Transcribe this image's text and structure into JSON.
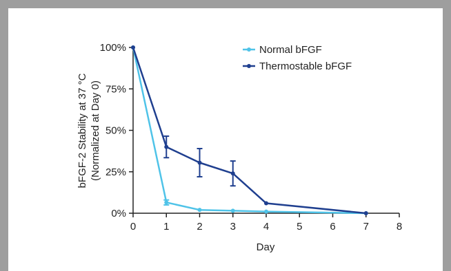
{
  "chart_data": {
    "type": "line",
    "title": "",
    "xlabel": "Day",
    "ylabel_lines": [
      "bFGF-2 Stability at 37 °C",
      "(Normalized at Day 0)"
    ],
    "xlim": [
      0,
      8
    ],
    "ylim": [
      0,
      100
    ],
    "x_ticks": [
      0,
      1,
      2,
      3,
      4,
      5,
      6,
      7,
      8
    ],
    "y_ticks": [
      0,
      25,
      50,
      75,
      100
    ],
    "y_tick_labels": [
      "0%",
      "25%",
      "50%",
      "75%",
      "100%"
    ],
    "grid": false,
    "legend_position": "top-right",
    "series": [
      {
        "name": "Normal bFGF",
        "color": "#4fc3e8",
        "x": [
          0,
          1,
          2,
          3,
          4,
          7
        ],
        "y": [
          100,
          6.5,
          2,
          1.5,
          1,
          0
        ],
        "err": [
          0,
          1.5,
          0,
          0,
          0,
          0
        ]
      },
      {
        "name": "Thermostable bFGF",
        "color": "#1f3f8f",
        "x": [
          0,
          1,
          2,
          3,
          4,
          7
        ],
        "y": [
          100,
          40,
          30.5,
          24,
          6,
          0
        ],
        "err": [
          0,
          6.5,
          8.5,
          7.5,
          0,
          0
        ]
      }
    ]
  }
}
